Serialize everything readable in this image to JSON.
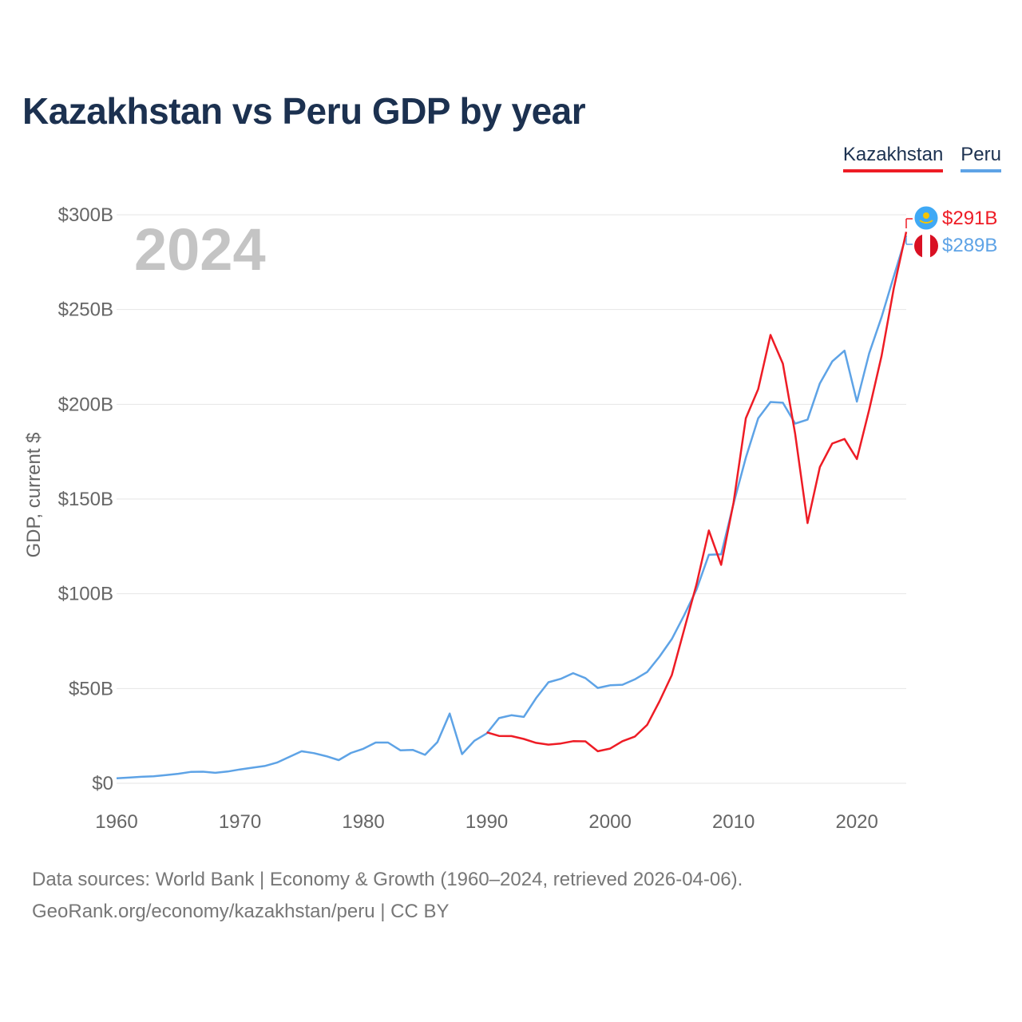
{
  "title": "Kazakhstan vs Peru GDP by year",
  "legend": {
    "kazakhstan": "Kazakhstan",
    "peru": "Peru"
  },
  "year_watermark": "2024",
  "source": {
    "line1": "Data sources: World Bank | Economy & Growth (1960–2024, retrieved 2026-04-06).",
    "line2": "GeoRank.org/economy/kazakhstan/peru | CC BY"
  },
  "colors": {
    "kazakhstan": "#ee1c25",
    "peru": "#5ea3e6",
    "title": "#1c3150",
    "axis_text": "#666666",
    "grid": "#e6e6e6",
    "watermark": "#c4c4c4"
  },
  "chart_data": {
    "type": "line",
    "title": "Kazakhstan vs Peru GDP by year",
    "xlabel": "",
    "ylabel": "GDP, current $",
    "xlim": [
      1960,
      2024
    ],
    "ylim": [
      0,
      300
    ],
    "y_unit": "billion US$",
    "x_ticks": [
      1960,
      1970,
      1980,
      1990,
      2000,
      2010,
      2020
    ],
    "y_ticks": [
      {
        "value": 0,
        "label": "$0"
      },
      {
        "value": 50,
        "label": "$50B"
      },
      {
        "value": 100,
        "label": "$100B"
      },
      {
        "value": 150,
        "label": "$150B"
      },
      {
        "value": 200,
        "label": "$200B"
      },
      {
        "value": 250,
        "label": "$250B"
      },
      {
        "value": 300,
        "label": "$300B"
      }
    ],
    "grid": true,
    "legend_position": "top-right",
    "series": [
      {
        "name": "Kazakhstan",
        "color": "#ee1c25",
        "end_label": "$291B",
        "x": [
          1990,
          1991,
          1992,
          1993,
          1994,
          1995,
          1996,
          1997,
          1998,
          1999,
          2000,
          2001,
          2002,
          2003,
          2004,
          2005,
          2006,
          2007,
          2008,
          2009,
          2010,
          2011,
          2012,
          2013,
          2014,
          2015,
          2016,
          2017,
          2018,
          2019,
          2020,
          2021,
          2022,
          2023,
          2024
        ],
        "values": [
          26.9,
          25.0,
          24.9,
          23.4,
          21.3,
          20.4,
          21.0,
          22.2,
          22.1,
          16.9,
          18.3,
          22.2,
          24.6,
          30.8,
          43.2,
          57.1,
          81.0,
          104.9,
          133.4,
          115.3,
          148.0,
          192.6,
          208.0,
          236.6,
          221.4,
          184.4,
          137.3,
          166.8,
          179.3,
          181.7,
          171.1,
          197.1,
          225.5,
          261.4,
          291.0
        ]
      },
      {
        "name": "Peru",
        "color": "#5ea3e6",
        "end_label": "$289B",
        "x": [
          1960,
          1961,
          1962,
          1963,
          1964,
          1965,
          1966,
          1967,
          1968,
          1969,
          1970,
          1971,
          1972,
          1973,
          1974,
          1975,
          1976,
          1977,
          1978,
          1979,
          1980,
          1981,
          1982,
          1983,
          1984,
          1985,
          1986,
          1987,
          1988,
          1989,
          1990,
          1991,
          1992,
          1993,
          1994,
          1995,
          1996,
          1997,
          1998,
          1999,
          2000,
          2001,
          2002,
          2003,
          2004,
          2005,
          2006,
          2007,
          2008,
          2009,
          2010,
          2011,
          2012,
          2013,
          2014,
          2015,
          2016,
          2017,
          2018,
          2019,
          2020,
          2021,
          2022,
          2023,
          2024
        ],
        "values": [
          2.6,
          3.0,
          3.4,
          3.7,
          4.3,
          5.0,
          6.0,
          6.1,
          5.5,
          6.2,
          7.3,
          8.2,
          9.1,
          10.9,
          13.9,
          16.9,
          15.9,
          14.3,
          12.2,
          16.0,
          18.2,
          21.5,
          21.5,
          17.4,
          17.6,
          15.0,
          21.7,
          36.8,
          15.4,
          22.4,
          26.3,
          34.4,
          35.9,
          35.0,
          44.9,
          53.3,
          55.1,
          58.1,
          55.5,
          50.3,
          51.7,
          52.0,
          54.8,
          58.7,
          66.8,
          76.1,
          88.6,
          102.2,
          120.6,
          120.8,
          147.5,
          171.8,
          192.6,
          201.2,
          200.8,
          189.8,
          191.9,
          211.0,
          222.6,
          228.3,
          201.4,
          226.9,
          246.0,
          267.6,
          289.0
        ]
      }
    ]
  }
}
